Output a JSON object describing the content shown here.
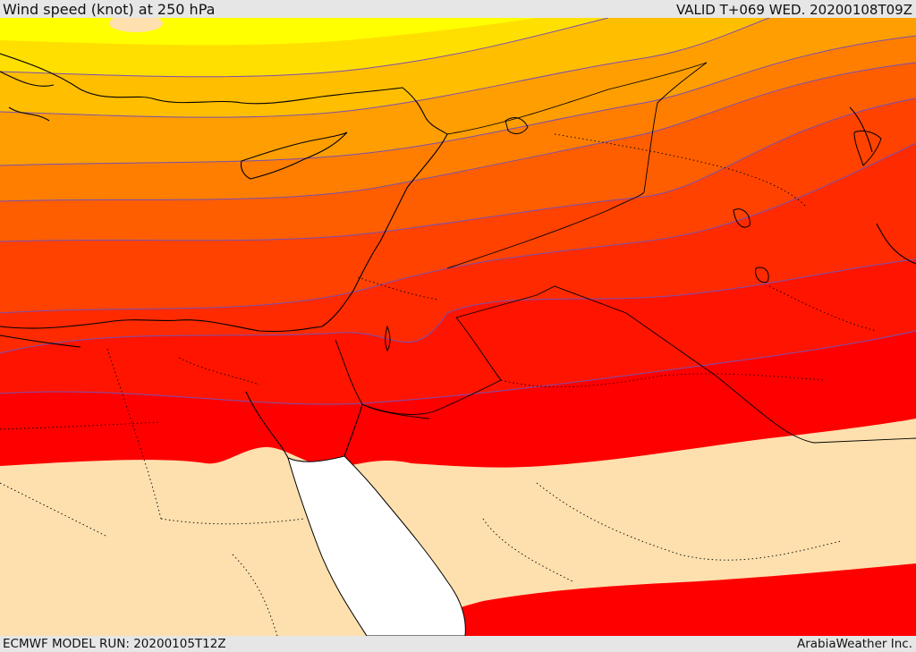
{
  "header": {
    "title": "Wind speed (knot) at 250 hPa",
    "valid": "VALID T+069 WED. 20200108T09Z"
  },
  "footer": {
    "model_run": "ECMWF MODEL RUN: 20200105T12Z",
    "credit": "ArabiaWeather Inc."
  },
  "colors": {
    "yellow": "#ffff00",
    "gold": "#ffdf00",
    "amber": "#ffbe00",
    "orange": "#ff9e00",
    "orange_deep": "#ff7e00",
    "red_orange": "#ff5e00",
    "red_orange_2": "#ff4200",
    "red_2": "#ff2a00",
    "red_3": "#ff1400",
    "red": "#ff0000",
    "calm": "#fde0ae",
    "sea_white": "#ffffff",
    "contour": "#7a4fb0",
    "border": "#000000"
  }
}
